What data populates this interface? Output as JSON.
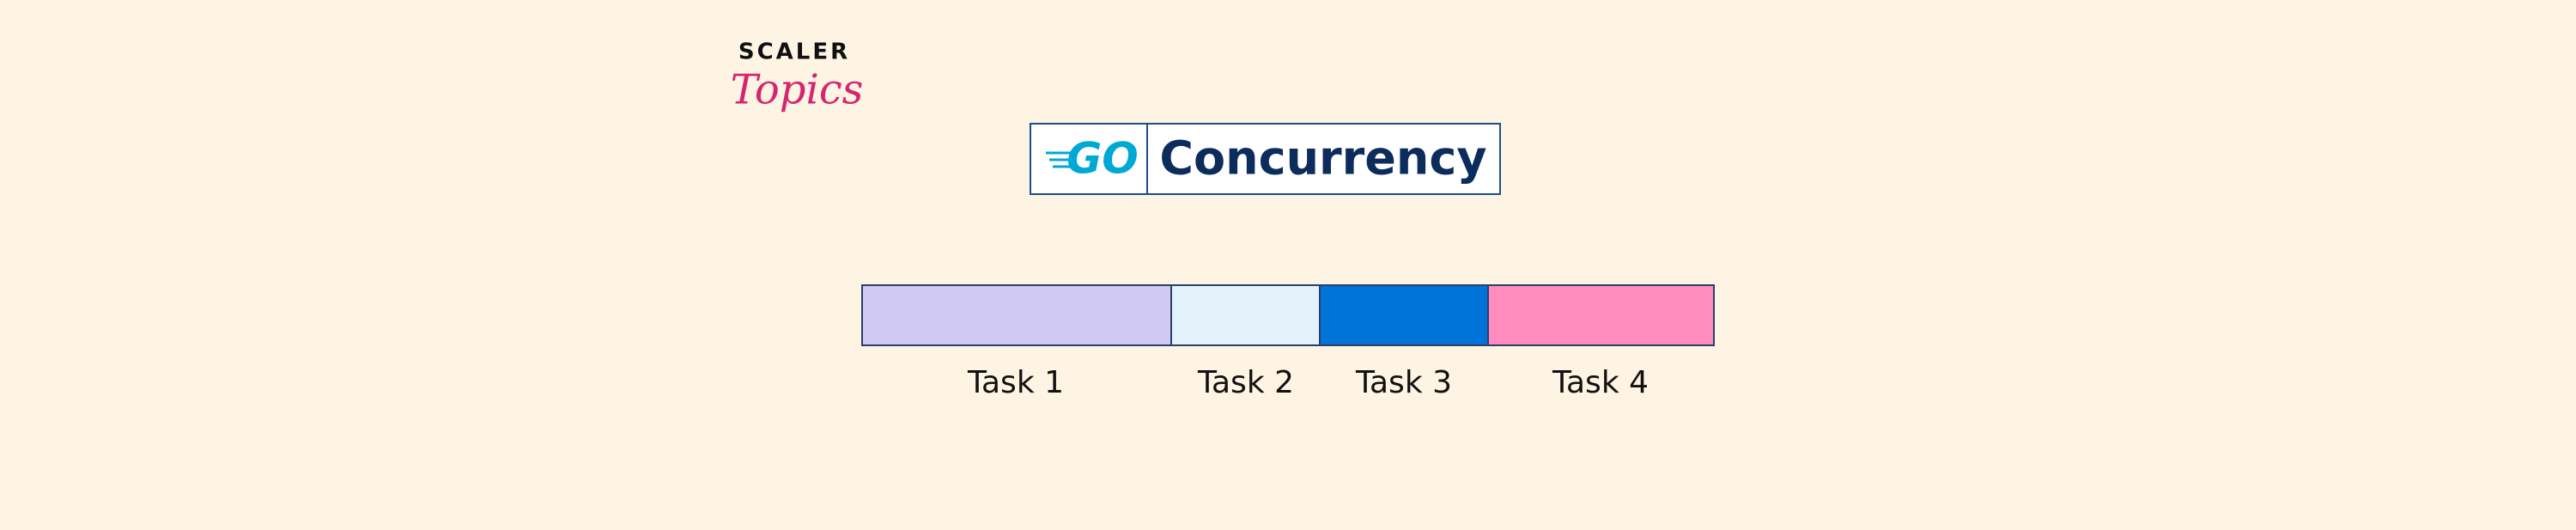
{
  "logo": {
    "line1": "SCALER",
    "line2": "Topics"
  },
  "header": {
    "badge": "GO",
    "title": "Concurrency"
  },
  "tasks": [
    "Task 1",
    "Task 2",
    "Task 3",
    "Task 4"
  ]
}
